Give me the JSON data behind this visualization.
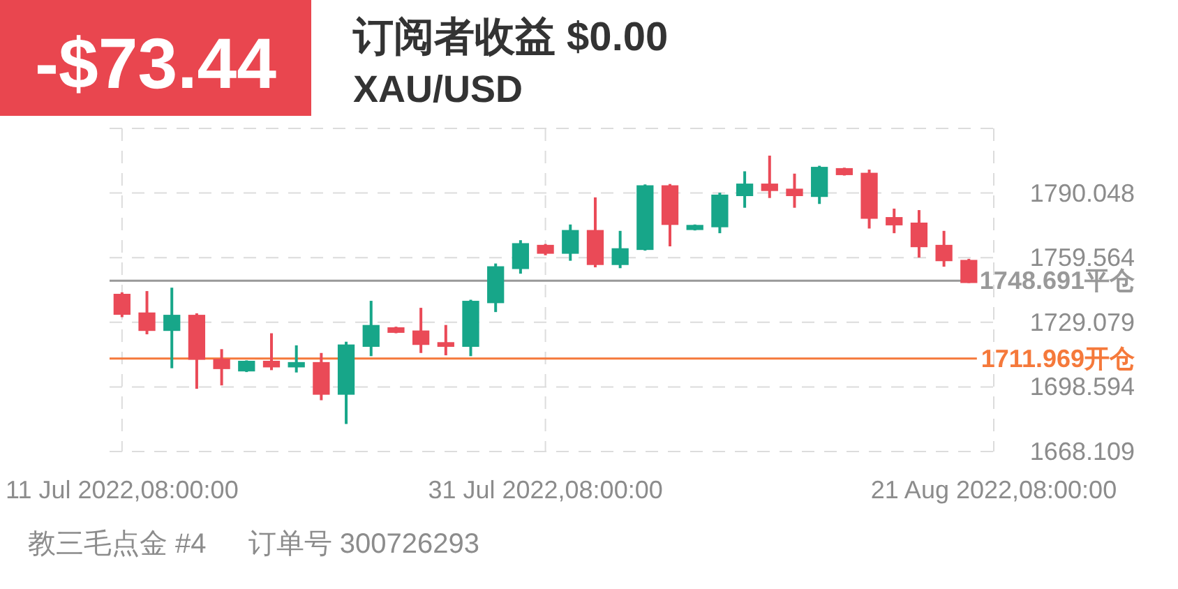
{
  "chart_data": {
    "type": "candlestick",
    "title": "订阅者收益 $0.00",
    "subtitle": "XAU/USD",
    "annotations": [
      "-$73.44",
      "教三毛点金 #4",
      "订单号 300726293"
    ],
    "categories": [
      "11 Jul 2022,08:00:00",
      null,
      null,
      null,
      null,
      null,
      null,
      null,
      null,
      null,
      null,
      null,
      null,
      null,
      null,
      null,
      null,
      "31 Jul 2022,08:00:00",
      null,
      null,
      null,
      null,
      null,
      null,
      null,
      null,
      null,
      null,
      null,
      null,
      null,
      null,
      null,
      null,
      null,
      "21 Aug 2022,08:00:00"
    ],
    "ohlc": [
      [
        1742.5,
        1743.2,
        1731.5,
        1732.6
      ],
      [
        1733.7,
        1743.8,
        1723.4,
        1725.0
      ],
      [
        1725.0,
        1745.4,
        1707.4,
        1732.6
      ],
      [
        1732.6,
        1733.3,
        1697.7,
        1711.4
      ],
      [
        1711.8,
        1716.4,
        1699.3,
        1707.0
      ],
      [
        1705.9,
        1711.1,
        1705.6,
        1710.9
      ],
      [
        1710.9,
        1723.9,
        1706.5,
        1707.8
      ],
      [
        1707.8,
        1718.2,
        1705.4,
        1710.3
      ],
      [
        1710.3,
        1714.6,
        1692.3,
        1694.9
      ],
      [
        1694.9,
        1719.9,
        1681.1,
        1718.6
      ],
      [
        1717.5,
        1739.2,
        1713.1,
        1727.8
      ],
      [
        1726.7,
        1727.0,
        1723.9,
        1724.1
      ],
      [
        1725.2,
        1735.9,
        1714.6,
        1718.4
      ],
      [
        1719.7,
        1727.8,
        1713.5,
        1717.5
      ],
      [
        1717.5,
        1739.7,
        1713.1,
        1739.2
      ],
      [
        1738.1,
        1756.8,
        1733.9,
        1755.5
      ],
      [
        1754.2,
        1767.8,
        1752.0,
        1766.4
      ],
      [
        1765.6,
        1766.0,
        1760.7,
        1761.4
      ],
      [
        1761.4,
        1775.2,
        1758.1,
        1772.6
      ],
      [
        1772.6,
        1788.0,
        1755.0,
        1756.1
      ],
      [
        1756.1,
        1772.2,
        1754.6,
        1764.0
      ],
      [
        1763.2,
        1794.1,
        1762.9,
        1793.7
      ],
      [
        1793.7,
        1794.3,
        1764.9,
        1775.0
      ],
      [
        1772.6,
        1775.2,
        1772.4,
        1775.0
      ],
      [
        1773.9,
        1790.2,
        1771.1,
        1789.3
      ],
      [
        1788.6,
        1800.3,
        1783.1,
        1794.5
      ],
      [
        1794.5,
        1807.7,
        1787.7,
        1791.0
      ],
      [
        1792.1,
        1799.2,
        1783.1,
        1788.6
      ],
      [
        1788.2,
        1802.9,
        1784.9,
        1802.4
      ],
      [
        1801.8,
        1802.0,
        1798.3,
        1798.5
      ],
      [
        1799.6,
        1801.1,
        1773.3,
        1777.9
      ],
      [
        1778.7,
        1782.7,
        1771.1,
        1774.8
      ],
      [
        1776.1,
        1782.0,
        1759.6,
        1764.5
      ],
      [
        1765.6,
        1772.2,
        1755.3,
        1757.9
      ],
      [
        1758.5,
        1759.0,
        1747.6,
        1747.6
      ],
      null
    ],
    "colors": [
      "#ea4a57",
      "#ea4a57",
      "#17a689",
      "#ea4a57",
      "#ea4a57",
      "#17a689",
      "#ea4a57",
      "#17a689",
      "#ea4a57",
      "#17a689",
      "#17a689",
      "#ea4a57",
      "#ea4a57",
      "#ea4a57",
      "#17a689",
      "#17a689",
      "#17a689",
      "#ea4a57",
      "#17a689",
      "#ea4a57",
      "#17a689",
      "#17a689",
      "#ea4a57",
      "#17a689",
      "#17a689",
      "#17a689",
      "#ea4a57",
      "#ea4a57",
      "#17a689",
      "#ea4a57",
      "#ea4a57",
      "#ea4a57",
      "#ea4a57",
      "#ea4a57",
      "#ea4a57",
      null
    ],
    "ylim": [
      1668.109,
      1820.533
    ],
    "yticks": [
      1668.109,
      1698.594,
      1729.079,
      1759.564,
      1790.048,
      {
        "value": 1820.533,
        "label": null
      }
    ],
    "grid": true,
    "ref_lines": [
      {
        "axis": "y",
        "value": 1748.691,
        "label": "1748.691平仓",
        "color": "#999999",
        "line_style": "solid"
      },
      {
        "axis": "y",
        "value": 1711.969,
        "label": "1711.969开仓",
        "color": "#f5793b",
        "line_style": "solid"
      }
    ]
  }
}
